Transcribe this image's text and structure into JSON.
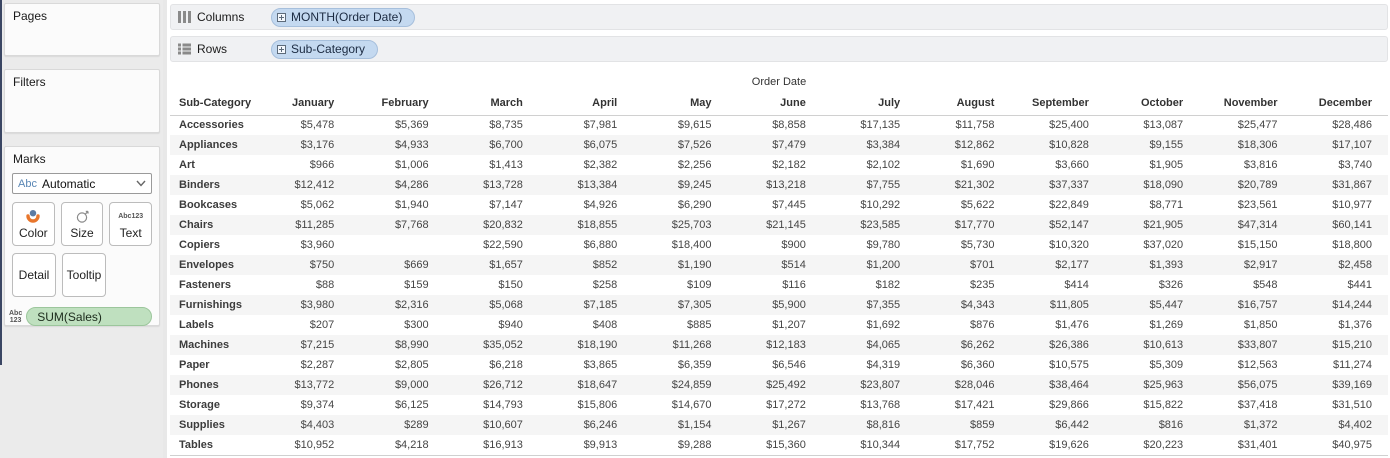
{
  "sidebar": {
    "pages_title": "Pages",
    "filters_title": "Filters",
    "marks_title": "Marks",
    "mark_type_prefix": "Abc",
    "mark_type_value": "Automatic",
    "buttons": {
      "color": "Color",
      "size": "Size",
      "text": "Text",
      "detail": "Detail",
      "tooltip": "Tooltip"
    },
    "abc123_icon_line1": "Abc",
    "abc123_icon_line2": "123",
    "field_pill": "SUM(Sales)"
  },
  "shelves": {
    "columns_label": "Columns",
    "columns_pill": "MONTH(Order Date)",
    "rows_label": "Rows",
    "rows_pill": "Sub-Category"
  },
  "colors": {
    "pill_blue": "#c4d9f0",
    "pill_green": "#bfe0bf",
    "abc_accent_blue": "#5a87b5",
    "band_gray": "#f5f5f5"
  },
  "table": {
    "title": "Order Date",
    "row_header": "Sub-Category",
    "months": [
      "January",
      "February",
      "March",
      "April",
      "May",
      "June",
      "July",
      "August",
      "September",
      "October",
      "November",
      "December"
    ],
    "rows": [
      {
        "label": "Accessories",
        "values": [
          "$5,478",
          "$5,369",
          "$8,735",
          "$7,981",
          "$9,615",
          "$8,858",
          "$17,135",
          "$11,758",
          "$25,400",
          "$13,087",
          "$25,477",
          "$28,486"
        ]
      },
      {
        "label": "Appliances",
        "values": [
          "$3,176",
          "$4,933",
          "$6,700",
          "$6,075",
          "$7,526",
          "$7,479",
          "$3,384",
          "$12,862",
          "$10,828",
          "$9,155",
          "$18,306",
          "$17,107"
        ]
      },
      {
        "label": "Art",
        "values": [
          "$966",
          "$1,006",
          "$1,413",
          "$2,382",
          "$2,256",
          "$2,182",
          "$2,102",
          "$1,690",
          "$3,660",
          "$1,905",
          "$3,816",
          "$3,740"
        ]
      },
      {
        "label": "Binders",
        "values": [
          "$12,412",
          "$4,286",
          "$13,728",
          "$13,384",
          "$9,245",
          "$13,218",
          "$7,755",
          "$21,302",
          "$37,337",
          "$18,090",
          "$20,789",
          "$31,867"
        ]
      },
      {
        "label": "Bookcases",
        "values": [
          "$5,062",
          "$1,940",
          "$7,147",
          "$4,926",
          "$6,290",
          "$7,445",
          "$10,292",
          "$5,622",
          "$22,849",
          "$8,771",
          "$23,561",
          "$10,977"
        ]
      },
      {
        "label": "Chairs",
        "values": [
          "$11,285",
          "$7,768",
          "$20,832",
          "$18,855",
          "$25,703",
          "$21,145",
          "$23,585",
          "$17,770",
          "$52,147",
          "$21,905",
          "$47,314",
          "$60,141"
        ]
      },
      {
        "label": "Copiers",
        "values": [
          "$3,960",
          "",
          "$22,590",
          "$6,880",
          "$18,400",
          "$900",
          "$9,780",
          "$5,730",
          "$10,320",
          "$37,020",
          "$15,150",
          "$18,800"
        ]
      },
      {
        "label": "Envelopes",
        "values": [
          "$750",
          "$669",
          "$1,657",
          "$852",
          "$1,190",
          "$514",
          "$1,200",
          "$701",
          "$2,177",
          "$1,393",
          "$2,917",
          "$2,458"
        ]
      },
      {
        "label": "Fasteners",
        "values": [
          "$88",
          "$159",
          "$150",
          "$258",
          "$109",
          "$116",
          "$182",
          "$235",
          "$414",
          "$326",
          "$548",
          "$441"
        ]
      },
      {
        "label": "Furnishings",
        "values": [
          "$3,980",
          "$2,316",
          "$5,068",
          "$7,185",
          "$7,305",
          "$5,900",
          "$7,355",
          "$4,343",
          "$11,805",
          "$5,447",
          "$16,757",
          "$14,244"
        ]
      },
      {
        "label": "Labels",
        "values": [
          "$207",
          "$300",
          "$940",
          "$408",
          "$885",
          "$1,207",
          "$1,692",
          "$876",
          "$1,476",
          "$1,269",
          "$1,850",
          "$1,376"
        ]
      },
      {
        "label": "Machines",
        "values": [
          "$7,215",
          "$8,990",
          "$35,052",
          "$18,190",
          "$11,268",
          "$12,183",
          "$4,065",
          "$6,262",
          "$26,386",
          "$10,613",
          "$33,807",
          "$15,210"
        ]
      },
      {
        "label": "Paper",
        "values": [
          "$2,287",
          "$2,805",
          "$6,218",
          "$3,865",
          "$6,359",
          "$6,546",
          "$4,319",
          "$6,360",
          "$10,575",
          "$5,309",
          "$12,563",
          "$11,274"
        ]
      },
      {
        "label": "Phones",
        "values": [
          "$13,772",
          "$9,000",
          "$26,712",
          "$18,647",
          "$24,859",
          "$25,492",
          "$23,807",
          "$28,046",
          "$38,464",
          "$25,963",
          "$56,075",
          "$39,169"
        ]
      },
      {
        "label": "Storage",
        "values": [
          "$9,374",
          "$6,125",
          "$14,793",
          "$15,806",
          "$14,670",
          "$17,272",
          "$13,768",
          "$17,421",
          "$29,866",
          "$15,822",
          "$37,418",
          "$31,510"
        ]
      },
      {
        "label": "Supplies",
        "values": [
          "$4,403",
          "$289",
          "$10,607",
          "$6,246",
          "$1,154",
          "$1,267",
          "$8,816",
          "$859",
          "$6,442",
          "$816",
          "$1,372",
          "$4,402"
        ]
      },
      {
        "label": "Tables",
        "values": [
          "$10,952",
          "$4,218",
          "$16,913",
          "$9,913",
          "$9,288",
          "$15,360",
          "$10,344",
          "$17,752",
          "$19,626",
          "$20,223",
          "$31,401",
          "$40,975"
        ]
      }
    ]
  }
}
